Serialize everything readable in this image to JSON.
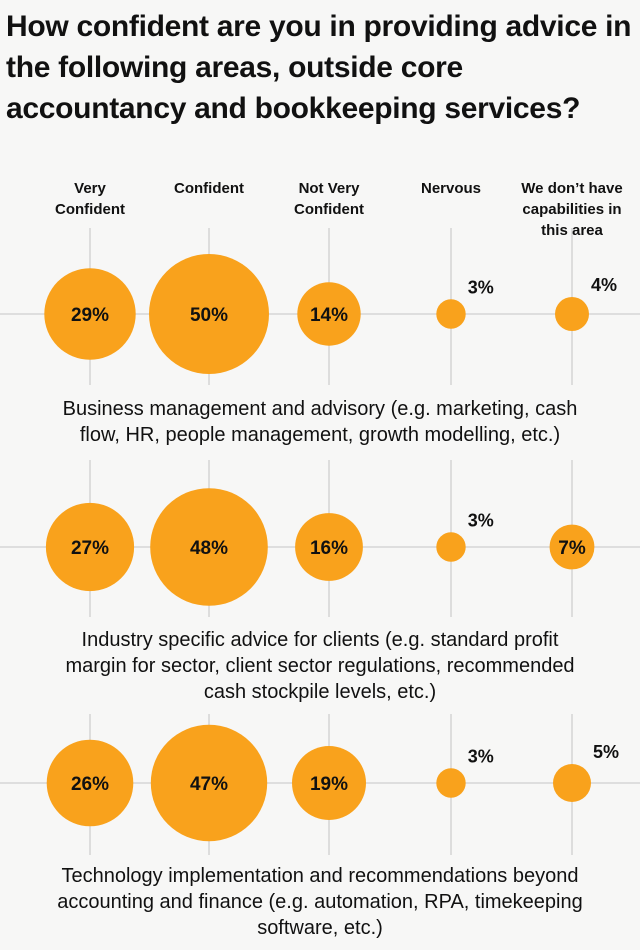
{
  "title": "How confident are you in providing advice in the following areas, outside core accountancy and bookkeeping services?",
  "chart_data": {
    "type": "bubble",
    "title": "How confident are you in providing advice in the following areas, outside core accountancy and bookkeeping services?",
    "categories": [
      "Very Confident",
      "Confident",
      "Not Very Confident",
      "Nervous",
      "We don’t have capabilities in this area"
    ],
    "rows": [
      {
        "name": "Business management and advisory (e.g. marketing, cash flow, HR, people management, growth modelling, etc.)",
        "label_lines": [
          "Business management and advisory (e.g. marketing, cash",
          "flow, HR, people management, growth modelling, etc.)"
        ],
        "values": [
          29,
          50,
          14,
          3,
          4
        ]
      },
      {
        "name": "Industry specific advice for clients (e.g. standard profit margin for sector, client sector regulations, recommended cash stockpile levels, etc.)",
        "label_lines": [
          "Industry specific advice for clients (e.g. standard profit",
          "margin for sector, client sector regulations, recommended",
          "cash stockpile levels, etc.)"
        ],
        "values": [
          27,
          48,
          16,
          3,
          7
        ]
      },
      {
        "name": "Technology implementation and recommendations beyond accounting and finance (e.g. automation, RPA, timekeeping software, etc.)",
        "label_lines": [
          "Technology implementation and recommendations beyond",
          "accounting and finance (e.g. automation, RPA, timekeeping",
          "software, etc.)"
        ],
        "values": [
          26,
          47,
          19,
          3,
          5
        ]
      }
    ],
    "unit": "%",
    "bubble_color": "#f9a21c",
    "grid": true
  }
}
